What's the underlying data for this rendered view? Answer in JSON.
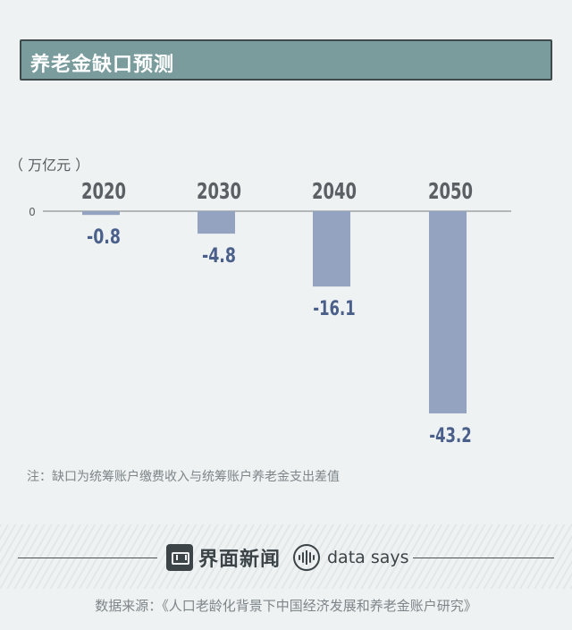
{
  "header": {
    "title": "养老金缺口预测"
  },
  "unit_label": "（ 万亿元 ）",
  "colors": {
    "bar": "#93a3c0",
    "value_label": "#4a5f8a",
    "year_label": "#5a6063",
    "axis": "#8f9698"
  },
  "chart_data": {
    "type": "bar",
    "categories": [
      "2020",
      "2030",
      "2040",
      "2050"
    ],
    "values": [
      -0.8,
      -4.8,
      -16.1,
      -43.2
    ],
    "value_labels": [
      "-0.8",
      "-4.8",
      "-16.1",
      "-43.2"
    ],
    "title": "养老金缺口预测",
    "ylabel": "万亿元",
    "zero_tick": "0",
    "ylim": [
      -45,
      0
    ]
  },
  "note": "注：缺口为统筹账户缴费收入与统筹账户养老金支出差值",
  "footer": {
    "brand_name": "界面新闻",
    "data_says": "data says",
    "source": "数据来源：《人口老龄化背景下中国经济发展和养老金账户研究》"
  }
}
